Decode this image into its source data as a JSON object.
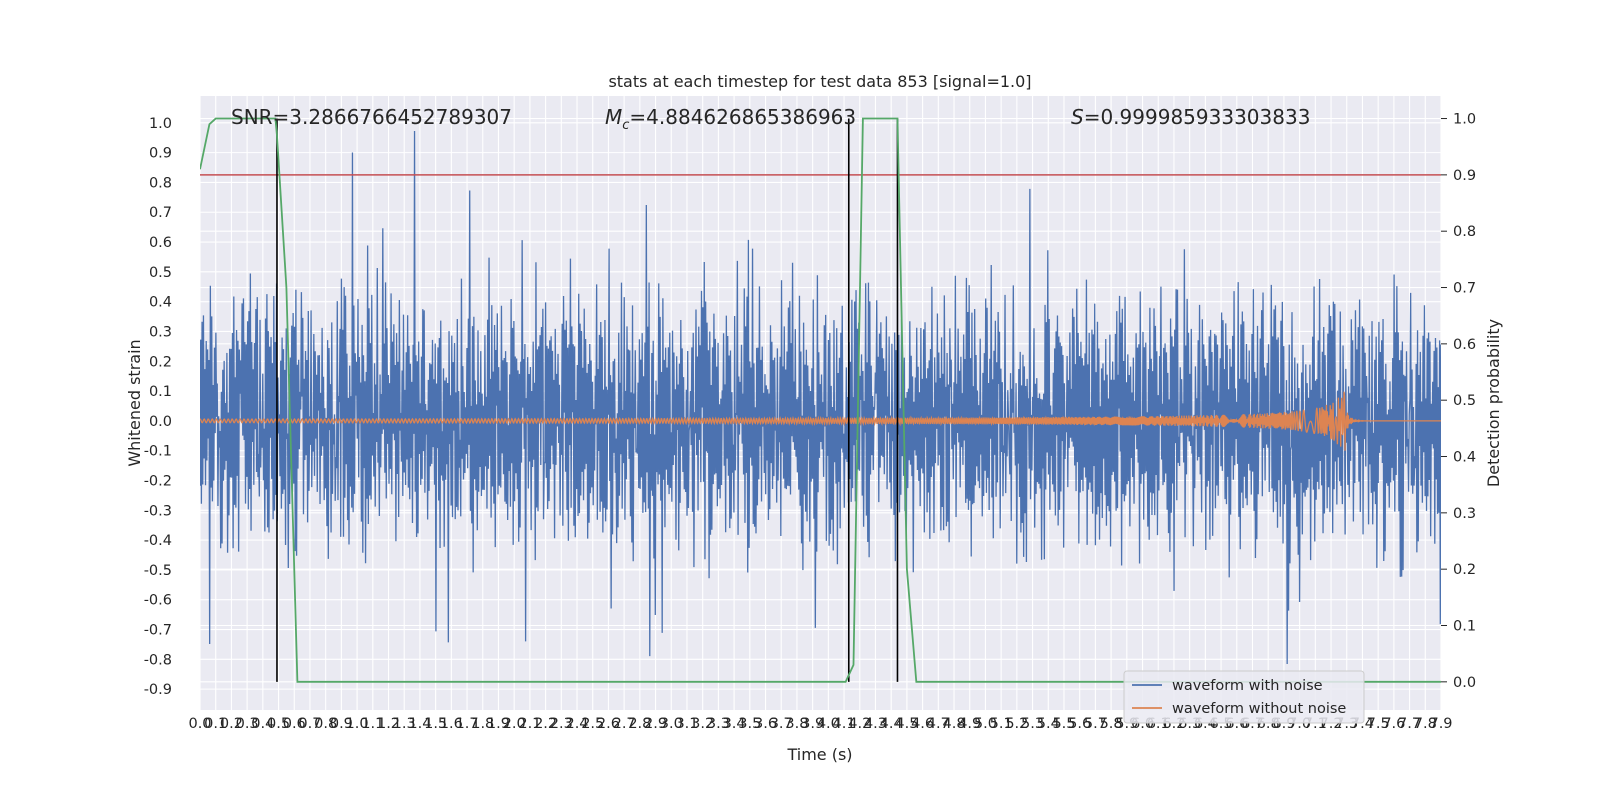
{
  "chart_data": {
    "type": "line",
    "title": "stats at each timestep for test data 853 [signal=1.0]",
    "xlabel": "Time (s)",
    "ylabel_left": "Whitened strain",
    "ylabel_right": "Detection probability",
    "xlim": [
      0.0,
      7.9
    ],
    "ylim_left": [
      -0.97,
      1.09
    ],
    "ylim_right": [
      -0.05,
      1.04
    ],
    "x_ticks": [
      "0.0",
      "0.1",
      "0.2",
      "0.3",
      "0.4",
      "0.5",
      "0.6",
      "0.7",
      "0.8",
      "0.9",
      "1.0",
      "1.1",
      "1.2",
      "1.3",
      "1.4",
      "1.5",
      "1.6",
      "1.7",
      "1.8",
      "1.9",
      "2.0",
      "2.1",
      "2.2",
      "2.3",
      "2.4",
      "2.5",
      "2.6",
      "2.7",
      "2.8",
      "2.9",
      "3.0",
      "3.1",
      "3.2",
      "3.3",
      "3.4",
      "3.5",
      "3.6",
      "3.7",
      "3.8",
      "3.9",
      "4.0",
      "4.1",
      "4.2",
      "4.3",
      "4.4",
      "4.5",
      "4.6",
      "4.7",
      "4.8",
      "4.9",
      "5.0",
      "5.1",
      "5.2",
      "5.3",
      "5.4",
      "5.5",
      "5.6",
      "5.7",
      "5.8",
      "5.9",
      "6.0",
      "6.1",
      "6.2",
      "6.3",
      "6.4",
      "6.5",
      "6.6",
      "6.7",
      "6.8",
      "6.9",
      "7.0",
      "7.1",
      "7.2",
      "7.3",
      "7.4",
      "7.5",
      "7.6",
      "7.7",
      "7.8",
      "7.9"
    ],
    "y_ticks_left": [
      "1.0",
      "0.9",
      "0.8",
      "0.7",
      "0.6",
      "0.5",
      "0.4",
      "0.3",
      "0.2",
      "0.1",
      "0.0",
      "-0.1",
      "-0.2",
      "-0.3",
      "-0.4",
      "-0.5",
      "-0.6",
      "-0.7",
      "-0.8",
      "-0.9"
    ],
    "y_ticks_right": [
      "1.0",
      "0.9",
      "0.8",
      "0.7",
      "0.6",
      "0.5",
      "0.4",
      "0.3",
      "0.2",
      "0.1",
      "0.0"
    ],
    "annotations": {
      "snr": "SNR=3.2866766452789307",
      "mc_symbol": "M",
      "mc_sub": "c",
      "mc_value": "=4.884626865386963",
      "s_symbol": "S",
      "s_value": "=0.999985933303833"
    },
    "threshold_probability": 0.9,
    "detection_boundaries_s": [
      0.49,
      4.13,
      4.44
    ],
    "series": [
      {
        "name": "waveform with noise",
        "color": "#4c72b0",
        "axis": "left",
        "noise_amplitude": 0.4,
        "max": 1.0,
        "min": -0.87
      },
      {
        "name": "waveform without noise",
        "color": "#dd8452",
        "axis": "left",
        "base_amplitude": 0.01,
        "peak_time": 7.29,
        "peak_amplitude": 0.1
      }
    ],
    "probability_series": {
      "color": "#55a868",
      "threshold_color": "#c44e52",
      "boundary_color": "#000000",
      "points": [
        [
          0.0,
          0.91
        ],
        [
          0.06,
          0.99
        ],
        [
          0.1,
          1.0
        ],
        [
          0.48,
          1.0
        ],
        [
          0.49,
          0.97
        ],
        [
          0.55,
          0.7
        ],
        [
          0.62,
          0.0
        ],
        [
          4.11,
          0.0
        ],
        [
          4.16,
          0.03
        ],
        [
          4.22,
          1.0
        ],
        [
          4.44,
          1.0
        ],
        [
          4.5,
          0.2
        ],
        [
          4.56,
          0.0
        ],
        [
          7.9,
          0.0
        ]
      ]
    },
    "legend": {
      "position": "lower-right",
      "entries": [
        "waveform with noise",
        "waveform without noise"
      ]
    },
    "grid": true,
    "background": "#eaeaf2"
  }
}
